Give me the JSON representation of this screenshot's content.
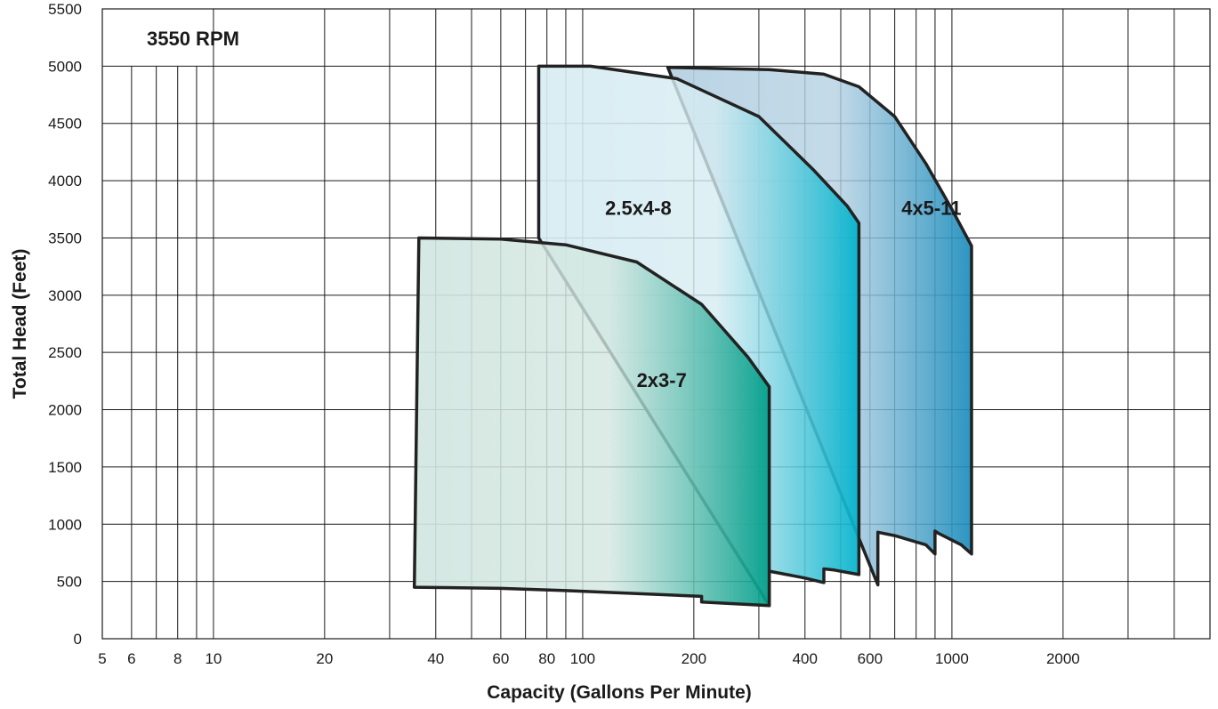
{
  "chart_data": {
    "type": "area",
    "title": "",
    "annotation": "3550 RPM",
    "xlabel": "Capacity (Gallons Per Minute)",
    "ylabel": "Total Head (Feet)",
    "x_scale": "log",
    "xlim": [
      5,
      5000
    ],
    "ylim": [
      0,
      5500
    ],
    "x_ticks": [
      5,
      6,
      8,
      10,
      20,
      40,
      60,
      80,
      100,
      200,
      400,
      600,
      1000,
      2000
    ],
    "x_tick_labels": [
      "5",
      "6",
      "8",
      "10",
      "20",
      "40",
      "60",
      "80",
      "100",
      "200",
      "400",
      "600",
      "1000",
      "2000"
    ],
    "x_gridlines": [
      5,
      6,
      7,
      8,
      9,
      10,
      20,
      30,
      40,
      50,
      60,
      70,
      80,
      90,
      100,
      200,
      300,
      400,
      500,
      600,
      700,
      800,
      900,
      1000,
      2000,
      3000,
      4000,
      5000
    ],
    "y_ticks": [
      0,
      500,
      1000,
      1500,
      2000,
      2500,
      3000,
      3500,
      4000,
      4500,
      5000,
      5500
    ],
    "y_tick_labels": [
      "0",
      "500",
      "1000",
      "1500",
      "2000",
      "2500",
      "3000",
      "3500",
      "4000",
      "4500",
      "5000",
      "5500"
    ],
    "grid": true,
    "series": [
      {
        "name": "4x5-11",
        "label_at": [
          730,
          3700
        ],
        "colors": [
          "#b4d0e2",
          "#1a8cbc"
        ],
        "boundary": [
          [
            170,
            4990
          ],
          [
            320,
            4970
          ],
          [
            450,
            4930
          ],
          [
            560,
            4820
          ],
          [
            700,
            4560
          ],
          [
            850,
            4150
          ],
          [
            1000,
            3750
          ],
          [
            1130,
            3430
          ],
          [
            1130,
            740
          ],
          [
            1060,
            820
          ],
          [
            920,
            920
          ],
          [
            900,
            940
          ],
          [
            900,
            740
          ],
          [
            850,
            820
          ],
          [
            700,
            900
          ],
          [
            630,
            930
          ],
          [
            630,
            470
          ]
        ]
      },
      {
        "name": "2.5x4-8",
        "label_at": [
          115,
          3700
        ],
        "colors": [
          "#d6ecf2",
          "#00b2cc"
        ],
        "boundary": [
          [
            76,
            3500
          ],
          [
            76,
            5000
          ],
          [
            105,
            5000
          ],
          [
            180,
            4890
          ],
          [
            300,
            4560
          ],
          [
            420,
            4100
          ],
          [
            520,
            3780
          ],
          [
            560,
            3630
          ],
          [
            560,
            560
          ],
          [
            480,
            600
          ],
          [
            450,
            610
          ],
          [
            450,
            490
          ],
          [
            400,
            530
          ],
          [
            320,
            590
          ],
          [
            320,
            290
          ]
        ]
      },
      {
        "name": "2x3-7",
        "label_at": [
          140,
          2200
        ],
        "colors": [
          "#d2e6e0",
          "#009e8a"
        ],
        "boundary": [
          [
            35,
            450
          ],
          [
            36,
            3500
          ],
          [
            60,
            3490
          ],
          [
            90,
            3440
          ],
          [
            140,
            3290
          ],
          [
            210,
            2920
          ],
          [
            280,
            2460
          ],
          [
            320,
            2200
          ],
          [
            320,
            290
          ],
          [
            210,
            320
          ],
          [
            210,
            370
          ],
          [
            150,
            390
          ],
          [
            90,
            420
          ],
          [
            60,
            440
          ],
          [
            35,
            450
          ]
        ]
      }
    ]
  }
}
